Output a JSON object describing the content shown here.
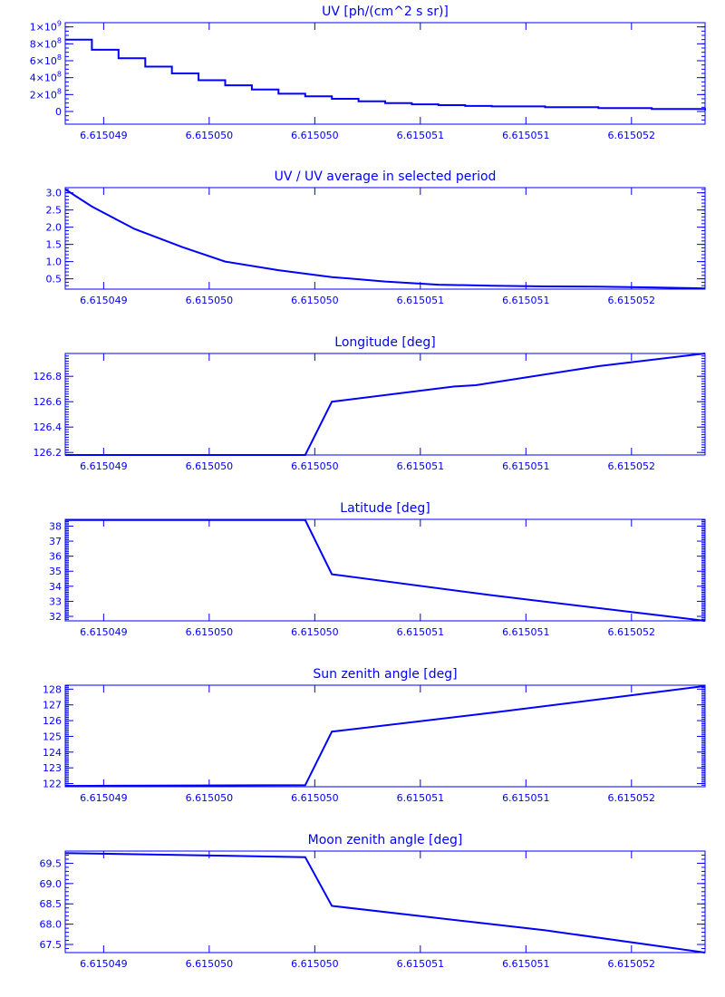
{
  "color": "#0000ff",
  "x_tick_labels": [
    "6.615049",
    "6.615050",
    "6.615050",
    "6.615051",
    "6.615051",
    "6.615052"
  ],
  "chart_data": [
    {
      "type": "line",
      "step": true,
      "title": "UV [ph/(cm^2 s sr)]",
      "xlim": [
        0,
        12
      ],
      "ylim": [
        -0.15,
        1.05
      ],
      "y_ticks": [
        {
          "v": 0,
          "mant": "0"
        },
        {
          "v": 0.2,
          "mant": "2",
          "exp": "8"
        },
        {
          "v": 0.4,
          "mant": "4",
          "exp": "8"
        },
        {
          "v": 0.6,
          "mant": "6",
          "exp": "8"
        },
        {
          "v": 0.8,
          "mant": "8",
          "exp": "8"
        },
        {
          "v": 1.0,
          "mant": "1",
          "exp": "9"
        }
      ],
      "y_minor_step": 0.05,
      "series": [
        {
          "x": [
            0,
            0.5,
            1.0,
            1.5,
            2.0,
            2.5,
            3.0,
            3.5,
            4.0,
            4.5,
            5.0,
            5.5,
            6.0,
            6.5,
            7.0,
            7.5,
            8.0,
            9.0,
            10.0,
            11.0,
            12.0
          ],
          "y": [
            0.85,
            0.73,
            0.63,
            0.53,
            0.45,
            0.37,
            0.31,
            0.26,
            0.21,
            0.18,
            0.15,
            0.12,
            0.1,
            0.085,
            0.075,
            0.065,
            0.06,
            0.05,
            0.04,
            0.03,
            0.015
          ]
        }
      ]
    },
    {
      "type": "line",
      "title": "UV / UV average in selected period",
      "xlim": [
        0,
        12
      ],
      "ylim": [
        0.2,
        3.15
      ],
      "y_ticks": [
        {
          "v": 0.5,
          "label": "0.5"
        },
        {
          "v": 1.0,
          "label": "1.0"
        },
        {
          "v": 1.5,
          "label": "1.5"
        },
        {
          "v": 2.0,
          "label": "2.0"
        },
        {
          "v": 2.5,
          "label": "2.5"
        },
        {
          "v": 3.0,
          "label": "3.0"
        }
      ],
      "y_minor_step": 0.1,
      "series": [
        {
          "x": [
            0,
            0.5,
            1.3,
            2.2,
            3.0,
            4.0,
            5.0,
            6.0,
            7.0,
            8.0,
            9.0,
            10.0,
            11.0,
            12.0
          ],
          "y": [
            3.1,
            2.6,
            1.95,
            1.42,
            1.0,
            0.75,
            0.55,
            0.42,
            0.33,
            0.3,
            0.28,
            0.27,
            0.25,
            0.22
          ]
        }
      ]
    },
    {
      "type": "line",
      "title": "Longitude [deg]",
      "xlim": [
        0,
        12
      ],
      "ylim": [
        126.18,
        126.98
      ],
      "y_ticks": [
        {
          "v": 126.2,
          "label": "126.2"
        },
        {
          "v": 126.4,
          "label": "126.4"
        },
        {
          "v": 126.6,
          "label": "126.6"
        },
        {
          "v": 126.8,
          "label": "126.8"
        }
      ],
      "y_minor_step": 0.02,
      "series": [
        {
          "x": [
            0,
            4.5,
            5.0,
            7.3,
            7.7,
            10.0,
            12.0
          ],
          "y": [
            126.18,
            126.18,
            126.6,
            126.72,
            126.73,
            126.88,
            126.98
          ]
        }
      ]
    },
    {
      "type": "line",
      "title": "Latitude [deg]",
      "xlim": [
        0,
        12
      ],
      "ylim": [
        31.7,
        38.45
      ],
      "y_ticks": [
        {
          "v": 32,
          "label": "32"
        },
        {
          "v": 33,
          "label": "33"
        },
        {
          "v": 34,
          "label": "34"
        },
        {
          "v": 35,
          "label": "35"
        },
        {
          "v": 36,
          "label": "36"
        },
        {
          "v": 37,
          "label": "37"
        },
        {
          "v": 38,
          "label": "38"
        }
      ],
      "y_minor_step": 0.1,
      "series": [
        {
          "x": [
            0,
            4.5,
            5.0,
            8.0,
            11.3,
            12.0
          ],
          "y": [
            38.4,
            38.4,
            34.8,
            33.4,
            32.0,
            31.7
          ]
        }
      ]
    },
    {
      "type": "line",
      "title": "Sun zenith angle [deg]",
      "xlim": [
        0,
        12
      ],
      "ylim": [
        121.8,
        128.25
      ],
      "y_ticks": [
        {
          "v": 122,
          "label": "122"
        },
        {
          "v": 123,
          "label": "123"
        },
        {
          "v": 124,
          "label": "124"
        },
        {
          "v": 125,
          "label": "125"
        },
        {
          "v": 126,
          "label": "126"
        },
        {
          "v": 127,
          "label": "127"
        },
        {
          "v": 128,
          "label": "128"
        }
      ],
      "y_minor_step": 0.1,
      "series": [
        {
          "x": [
            0,
            4.5,
            5.0,
            8.0,
            12.0
          ],
          "y": [
            121.85,
            121.9,
            125.3,
            126.5,
            128.2
          ]
        }
      ]
    },
    {
      "type": "line",
      "title": "Moon zenith angle [deg]",
      "xlim": [
        0,
        12
      ],
      "ylim": [
        67.3,
        69.8
      ],
      "y_ticks": [
        {
          "v": 67.5,
          "label": "67.5"
        },
        {
          "v": 68.0,
          "label": "68.0"
        },
        {
          "v": 68.5,
          "label": "68.5"
        },
        {
          "v": 69.0,
          "label": "69.0"
        },
        {
          "v": 69.5,
          "label": "69.5"
        }
      ],
      "y_minor_step": 0.1,
      "series": [
        {
          "x": [
            0,
            4.5,
            5.0,
            9.0,
            12.0
          ],
          "y": [
            69.75,
            69.65,
            68.45,
            67.85,
            67.3
          ]
        }
      ]
    }
  ]
}
